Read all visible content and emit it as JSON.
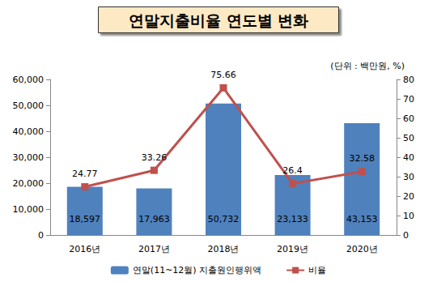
{
  "chart_data": {
    "type": "bar",
    "title": "연말지출비율 연도별 변화",
    "annotations": [
      "(단위 : 백만원, %)"
    ],
    "categories": [
      "2016년",
      "2017년",
      "2018년",
      "2019년",
      "2020년"
    ],
    "series": [
      {
        "name": "연말(11~12월) 지출원인행위액",
        "type": "bar",
        "color": "#4f81bd",
        "values": [
          18597,
          17963,
          50732,
          23133,
          43153
        ],
        "value_labels": [
          "18,597",
          "17,963",
          "50,732",
          "23,133",
          "43,153"
        ]
      },
      {
        "name": "비율",
        "type": "line",
        "axis": "y2",
        "color": "#c0504d",
        "marker": "square",
        "line_style": "solid",
        "values": [
          24.77,
          33.26,
          75.66,
          26.4,
          32.58
        ]
      }
    ],
    "ylim": [
      0,
      60000
    ],
    "yticks": [
      0,
      {
        "value": 10000,
        "label": "10,000"
      },
      {
        "value": 20000,
        "label": "20,000"
      },
      {
        "value": 30000,
        "label": "30,000"
      },
      {
        "value": 40000,
        "label": "40,000"
      },
      {
        "value": 50000,
        "label": "50,000"
      },
      {
        "value": 60000,
        "label": "60,000"
      }
    ],
    "y2lim": [
      0,
      80
    ],
    "y2ticks": [
      0,
      10,
      20,
      30,
      40,
      50,
      60,
      70,
      80
    ],
    "grid": false,
    "legend": "bottom",
    "data_labels": true
  }
}
